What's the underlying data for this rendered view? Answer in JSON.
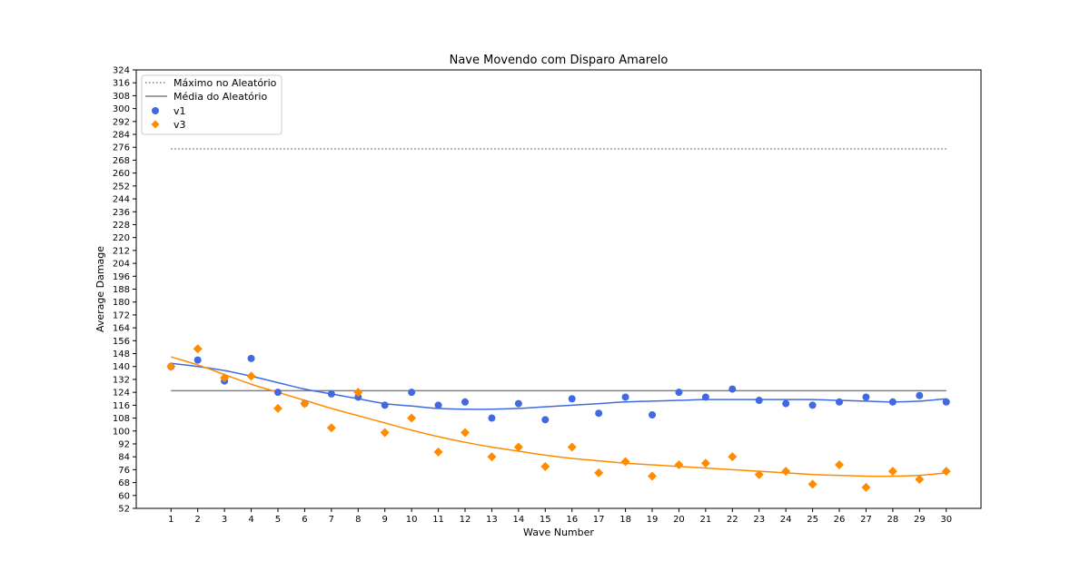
{
  "chart_data": {
    "type": "scatter",
    "title": "Nave Movendo com Disparo Amarelo",
    "xlabel": "Wave Number",
    "ylabel": "Average Damage",
    "xlim": [
      -0.3,
      31.3
    ],
    "ylim": [
      52,
      324
    ],
    "x_ticks": [
      1,
      2,
      3,
      4,
      5,
      6,
      7,
      8,
      9,
      10,
      11,
      12,
      13,
      14,
      15,
      16,
      17,
      18,
      19,
      20,
      21,
      22,
      23,
      24,
      25,
      26,
      27,
      28,
      29,
      30
    ],
    "y_ticks": [
      52,
      60,
      68,
      76,
      84,
      92,
      100,
      108,
      116,
      124,
      132,
      140,
      148,
      156,
      164,
      172,
      180,
      188,
      196,
      204,
      212,
      220,
      228,
      236,
      244,
      252,
      260,
      268,
      276,
      284,
      292,
      300,
      308,
      316,
      324
    ],
    "grid": false,
    "legend_position": "top-left",
    "reference_lines": [
      {
        "name": "Máximo no Aleatório",
        "value": 275,
        "style": "dotted",
        "color": "#808080"
      },
      {
        "name": "Média do Aleatório",
        "value": 125,
        "style": "solid",
        "color": "#808080"
      }
    ],
    "series": [
      {
        "name": "v1",
        "marker": "circle",
        "color": "#4169e1",
        "x": [
          1,
          2,
          3,
          4,
          5,
          6,
          7,
          8,
          9,
          10,
          11,
          12,
          13,
          14,
          15,
          16,
          17,
          18,
          19,
          20,
          21,
          22,
          23,
          24,
          25,
          26,
          27,
          28,
          29,
          30
        ],
        "values": [
          140,
          144,
          131,
          145,
          124,
          117,
          123,
          121,
          116,
          124,
          116,
          118,
          108,
          117,
          107,
          120,
          111,
          121,
          110,
          124,
          121,
          126,
          119,
          117,
          116,
          118,
          121,
          118,
          122,
          118
        ],
        "trend": [
          142,
          140,
          137.5,
          134,
          130,
          126,
          123,
          120,
          117,
          115.5,
          114,
          113.5,
          113.5,
          114,
          115,
          116,
          117,
          118,
          118.5,
          119,
          119.5,
          119.5,
          119.5,
          119.5,
          119.5,
          119,
          118.5,
          118,
          118.5,
          120
        ]
      },
      {
        "name": "v3",
        "marker": "diamond",
        "color": "#ff8c00",
        "x": [
          1,
          2,
          3,
          4,
          5,
          6,
          7,
          8,
          9,
          10,
          11,
          12,
          13,
          14,
          15,
          16,
          17,
          18,
          19,
          20,
          21,
          22,
          23,
          24,
          25,
          26,
          27,
          28,
          29,
          30
        ],
        "values": [
          140,
          151,
          133,
          134,
          114,
          117,
          102,
          124,
          99,
          108,
          87,
          99,
          84,
          90,
          78,
          90,
          74,
          81,
          72,
          79,
          80,
          84,
          73,
          75,
          67,
          79,
          65,
          75,
          70,
          75
        ],
        "trend": [
          146,
          141,
          135,
          129,
          124,
          119,
          114,
          109.5,
          105,
          100.5,
          96.5,
          93,
          90,
          87.5,
          85,
          83,
          81.5,
          80,
          79,
          78,
          77,
          76,
          75,
          74,
          73,
          72.5,
          72,
          72,
          72.5,
          74
        ]
      }
    ]
  }
}
